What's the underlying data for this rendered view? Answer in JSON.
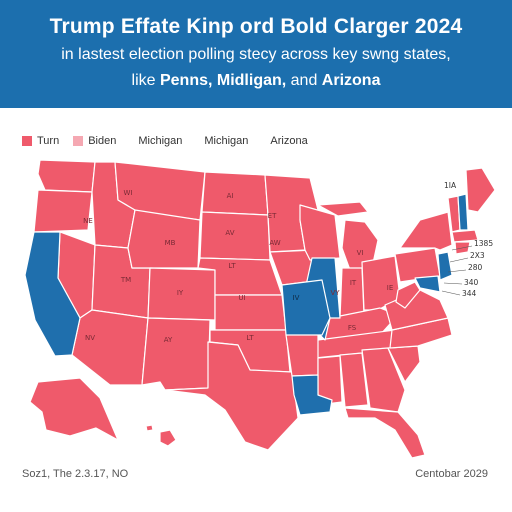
{
  "header": {
    "title": "Trump Effate Kinp ord Bold Clarger 2024",
    "subtitle_line1": "in lastest election polling stecy across key swng states,",
    "subtitle_line2_prefix": "like ",
    "subtitle_line2_bold1": "Penns, Midligan,",
    "subtitle_line2_mid": " and ",
    "subtitle_line2_bold2": "Arizona"
  },
  "legend": {
    "items": [
      {
        "label": "Turn",
        "color": "#ef5a6b"
      },
      {
        "label": "Biden",
        "color": "#f5a8b2"
      }
    ],
    "extra_labels": [
      "Michigan",
      "Michigan",
      "Arizona"
    ]
  },
  "colors": {
    "header_bg": "#1c6fae",
    "red": "#ef5a6b",
    "blue": "#1f6fad",
    "light_pink": "#f5a8b2"
  },
  "map": {
    "state_labels": [
      "WI",
      "NE",
      "MB",
      "AI",
      "ET",
      "AV",
      "TM",
      "IY",
      "LT",
      "AW",
      "AY",
      "VI",
      "IT",
      "UI",
      "IV",
      "LT",
      "IE",
      "VY",
      "FS",
      "NV"
    ],
    "side_labels": [
      "1IA",
      "1385",
      "2X3",
      "280",
      "340",
      "344"
    ]
  },
  "footer": {
    "left": "Soz1, The 2.3.17, NO",
    "right": "Centobar 2029"
  }
}
